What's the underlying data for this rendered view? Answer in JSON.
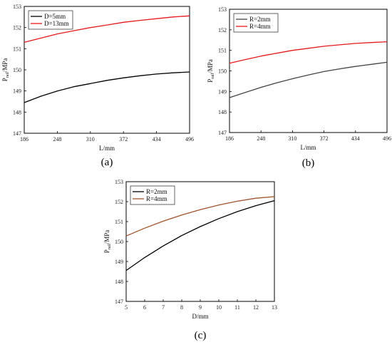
{
  "chart_data": [
    {
      "panel_label": "(a)",
      "type": "line",
      "xlabel": "L/mm",
      "ylabel": {
        "main": "P",
        "sub": "rail",
        "rest": "/MPa"
      },
      "xlim": [
        186,
        496
      ],
      "ylim": [
        147,
        153
      ],
      "xticks": [
        186,
        248,
        310,
        372,
        434,
        496
      ],
      "yticks": [
        147,
        148,
        149,
        150,
        151,
        152,
        153
      ],
      "legend_position": "top-left",
      "series": [
        {
          "name": "D=5mm",
          "color": "#000000",
          "x": [
            186,
            217,
            248,
            279,
            310,
            341,
            372,
            403,
            434,
            465,
            496
          ],
          "y": [
            148.45,
            148.75,
            149.0,
            149.2,
            149.35,
            149.5,
            149.62,
            149.72,
            149.8,
            149.86,
            149.9
          ]
        },
        {
          "name": "D=13mm",
          "color": "#e8191c",
          "x": [
            186,
            217,
            248,
            279,
            310,
            341,
            372,
            403,
            434,
            465,
            496
          ],
          "y": [
            151.3,
            151.5,
            151.7,
            151.85,
            152.0,
            152.12,
            152.25,
            152.34,
            152.42,
            152.5,
            152.55
          ]
        }
      ]
    },
    {
      "panel_label": "(b)",
      "type": "line",
      "xlabel": "L/mm",
      "ylabel": {
        "main": "P",
        "sub": "rail",
        "rest": "/MPa"
      },
      "xlim": [
        186,
        496
      ],
      "ylim": [
        147,
        153
      ],
      "xticks": [
        186,
        248,
        310,
        372,
        434,
        496
      ],
      "yticks": [
        147,
        148,
        149,
        150,
        151,
        152,
        153
      ],
      "legend_position": "top-left",
      "series": [
        {
          "name": "R=2mm",
          "color": "#444444",
          "x": [
            186,
            217,
            248,
            279,
            310,
            341,
            372,
            403,
            434,
            465,
            496
          ],
          "y": [
            148.7,
            148.95,
            149.2,
            149.42,
            149.62,
            149.8,
            149.97,
            150.1,
            150.22,
            150.32,
            150.42
          ]
        },
        {
          "name": "R=4mm",
          "color": "#e8191c",
          "x": [
            186,
            217,
            248,
            279,
            310,
            341,
            372,
            403,
            434,
            465,
            496
          ],
          "y": [
            150.37,
            150.55,
            150.72,
            150.86,
            151.0,
            151.1,
            151.2,
            151.27,
            151.34,
            151.38,
            151.42
          ]
        }
      ]
    },
    {
      "panel_label": "(c)",
      "type": "line",
      "xlabel": "D/mm",
      "ylabel": {
        "main": "P",
        "sub": "rail",
        "rest": "/MPa"
      },
      "xlim": [
        5,
        13
      ],
      "ylim": [
        147,
        153
      ],
      "xticks": [
        5,
        6,
        7,
        8,
        9,
        10,
        11,
        12,
        13
      ],
      "yticks": [
        147,
        148,
        149,
        150,
        151,
        152,
        153
      ],
      "legend_position": "top-left",
      "series": [
        {
          "name": "R=2mm",
          "color": "#000000",
          "x": [
            5,
            6,
            7,
            8,
            9,
            10,
            11,
            12,
            13
          ],
          "y": [
            148.55,
            149.2,
            149.78,
            150.3,
            150.75,
            151.15,
            151.5,
            151.8,
            152.05
          ]
        },
        {
          "name": "R=4mm",
          "color": "#a0522d",
          "x": [
            5,
            6,
            7,
            8,
            9,
            10,
            11,
            12,
            13
          ],
          "y": [
            150.28,
            150.67,
            151.02,
            151.33,
            151.6,
            151.83,
            152.02,
            152.17,
            152.25
          ]
        }
      ]
    }
  ]
}
